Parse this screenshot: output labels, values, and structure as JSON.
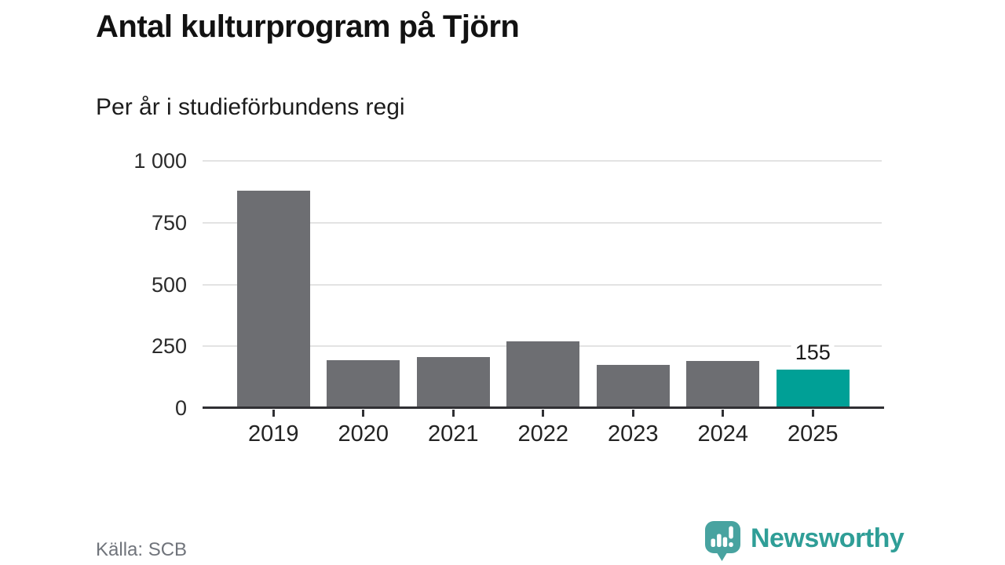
{
  "header": {
    "title": "Antal kulturprogram på Tjörn",
    "subtitle": "Per år i studieförbundens regi"
  },
  "footer": {
    "source": "Källa: SCB",
    "brand_name": "Newsworthy"
  },
  "colors": {
    "bar": "#6d6e72",
    "highlight": "#00a096",
    "grid": "#e3e3e3",
    "axis": "#303034",
    "value_label": "#1a1a1a",
    "brand_text": "#2f9e97",
    "brand_icon": "#48a3a0"
  },
  "icons": {
    "brand_icon": "newsworthy-bar-chart-bubble-icon"
  },
  "chart_data": {
    "type": "bar",
    "title": "Antal kulturprogram på Tjörn",
    "subtitle": "Per år i studieförbundens regi",
    "xlabel": "",
    "ylabel": "",
    "categories": [
      "2019",
      "2020",
      "2021",
      "2022",
      "2023",
      "2024",
      "2025"
    ],
    "values": [
      880,
      195,
      205,
      270,
      175,
      190,
      155
    ],
    "highlight_index": 6,
    "data_labels": {
      "6": "155"
    },
    "ytick_labels": [
      "1 000",
      "750",
      "500",
      "250",
      "0"
    ],
    "ytick_values": [
      1000,
      750,
      500,
      250,
      0
    ],
    "ylim": [
      0,
      1000
    ],
    "grid": true,
    "legend": false
  }
}
